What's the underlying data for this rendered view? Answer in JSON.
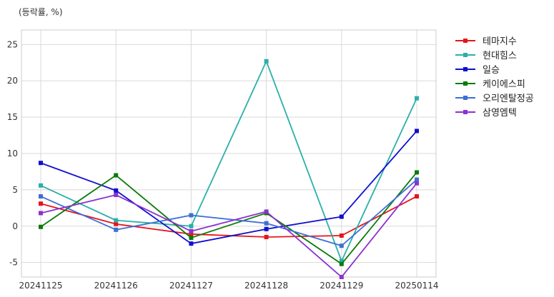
{
  "chart_data": {
    "type": "line",
    "unit_label": "(등락률, %)",
    "x": [
      "20241125",
      "20241126",
      "20241127",
      "20241128",
      "20241129",
      "20250114"
    ],
    "ylim": [
      -7,
      27
    ],
    "yticks": [
      -5,
      0,
      5,
      10,
      15,
      20,
      25
    ],
    "grid": true,
    "legend_position": "right",
    "series": [
      {
        "name": "테마지수",
        "color": "#e8141b",
        "values": [
          3.1,
          0.3,
          -1.1,
          -1.5,
          -1.3,
          4.1
        ]
      },
      {
        "name": "현대힘스",
        "color": "#2ab0a8",
        "values": [
          5.6,
          0.8,
          0.0,
          22.7,
          -4.8,
          17.6
        ]
      },
      {
        "name": "일승",
        "color": "#0f0fcf",
        "values": [
          8.7,
          4.9,
          -2.4,
          -0.4,
          1.3,
          13.1
        ]
      },
      {
        "name": "케이에스피",
        "color": "#0a7a0a",
        "values": [
          -0.1,
          7.0,
          -1.6,
          1.8,
          -5.2,
          7.4
        ]
      },
      {
        "name": "오리엔탈정공",
        "color": "#3d6fd6",
        "values": [
          4.1,
          -0.5,
          1.5,
          0.4,
          -2.7,
          6.4
        ]
      },
      {
        "name": "삼영엠텍",
        "color": "#8b32d0",
        "values": [
          1.8,
          4.3,
          -0.7,
          2.0,
          -7.0,
          5.9
        ]
      }
    ]
  }
}
